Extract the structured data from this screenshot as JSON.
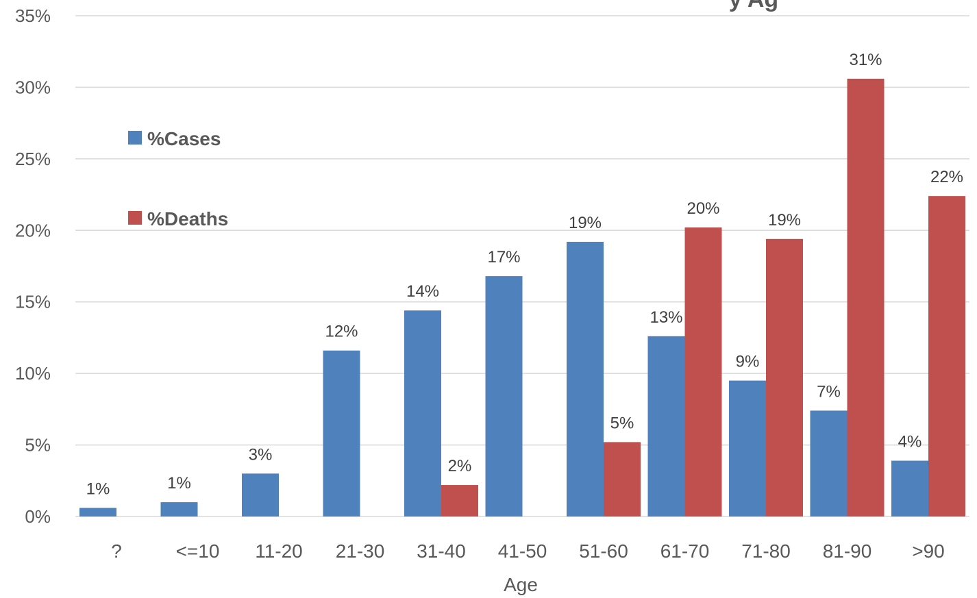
{
  "chart_data": {
    "type": "bar",
    "title_partial": "y Ag",
    "xlabel": "Age",
    "ylabel": "",
    "ylim": [
      0,
      35
    ],
    "yticks": [
      "0%",
      "5%",
      "10%",
      "15%",
      "20%",
      "25%",
      "30%",
      "35%"
    ],
    "categories": [
      "?",
      "<=10",
      "11-20",
      "21-30",
      "31-40",
      "41-50",
      "51-60",
      "61-70",
      "71-80",
      "81-90",
      ">90"
    ],
    "series": [
      {
        "name": "%Cases",
        "color": "#4f81bd",
        "values": [
          0.6,
          1.0,
          3.0,
          11.6,
          14.4,
          16.8,
          19.2,
          12.6,
          9.5,
          7.4,
          3.9
        ],
        "labels": [
          "1%",
          "1%",
          "3%",
          "12%",
          "14%",
          "17%",
          "19%",
          "13%",
          "9%",
          "7%",
          "4%"
        ]
      },
      {
        "name": "%Deaths",
        "color": "#c0504d",
        "values": [
          0,
          0,
          0,
          0,
          2.2,
          0,
          5.2,
          20.2,
          19.4,
          30.6,
          22.4
        ],
        "labels": [
          "",
          "",
          "",
          "",
          "2%",
          "",
          "5%",
          "20%",
          "19%",
          "31%",
          "22%"
        ]
      }
    ],
    "grid": true,
    "legend_position": "top-left"
  }
}
